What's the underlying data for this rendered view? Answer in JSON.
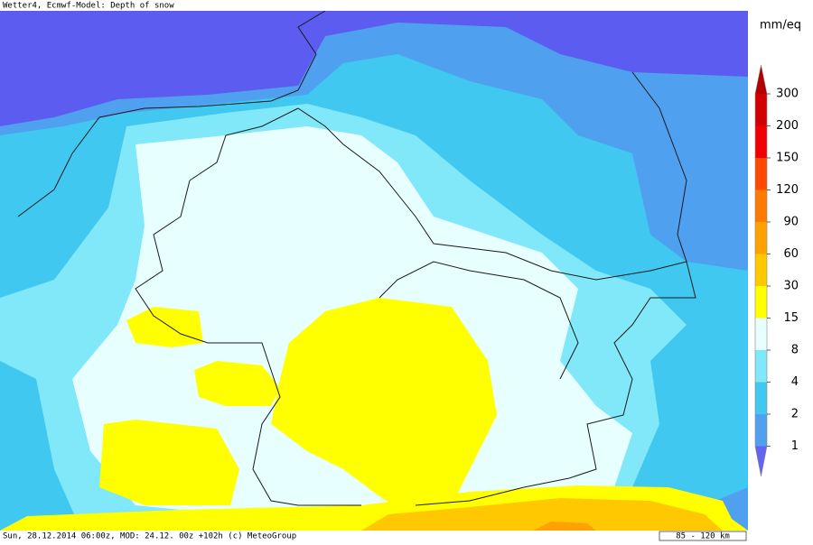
{
  "header": {
    "title": "Wetter4, Ecmwf-Model: Depth of snow"
  },
  "footer": {
    "text": "Sun, 28.12.2014 06:00z, MOD: 24.12. 00z +102h (c) MeteoGroup",
    "scale": "85 - 120 km"
  },
  "legend": {
    "unit": "mm/eq",
    "labels": [
      "300",
      "200",
      "150",
      "120",
      "90",
      "60",
      "30",
      "15",
      "8",
      "4",
      "2",
      "1"
    ],
    "colors": [
      "#b40000",
      "#d20000",
      "#f00000",
      "#ff4a00",
      "#ff7a00",
      "#ffa200",
      "#ffc800",
      "#ffff00",
      "#e8ffff",
      "#80e8f8",
      "#40c8f0",
      "#50a0f0",
      "#6464f0"
    ]
  }
}
